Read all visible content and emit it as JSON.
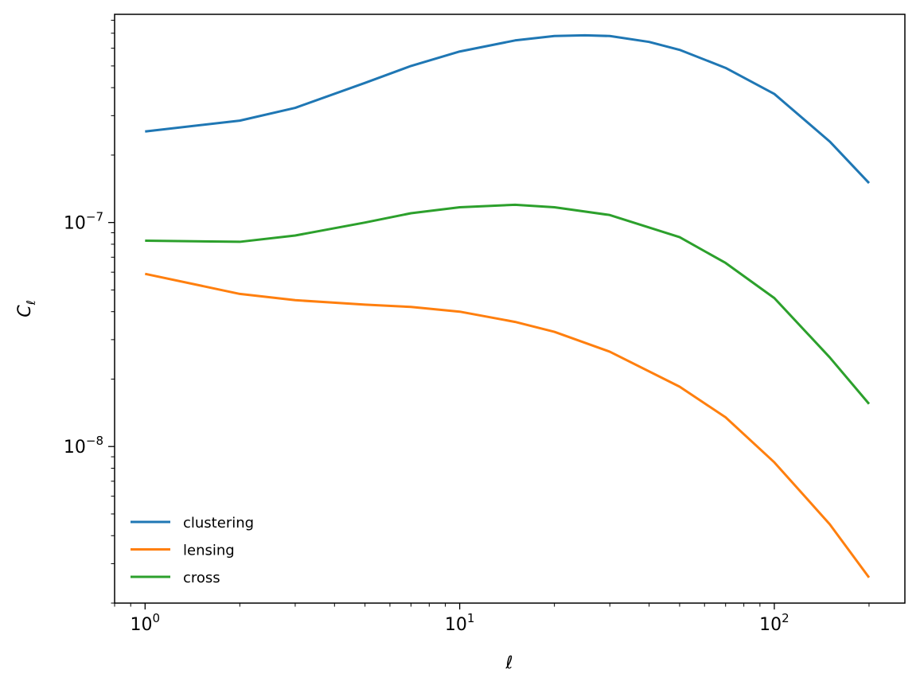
{
  "chart_data": {
    "type": "line",
    "xscale": "log",
    "yscale": "log",
    "xlim": [
      0.8,
      260
    ],
    "ylim": [
      2e-09,
      8.5e-07
    ],
    "xlabel": "ℓ",
    "ylabel": "C",
    "ylabel_sub": "ℓ",
    "grid": false,
    "legend_placement": "lower-left",
    "x_ticks": [
      {
        "base": "10",
        "exp": "0",
        "value": 1
      },
      {
        "base": "10",
        "exp": "1",
        "value": 10
      },
      {
        "base": "10",
        "exp": "2",
        "value": 100
      }
    ],
    "y_ticks": [
      {
        "base": "10",
        "exp": "−8",
        "value": 1e-08
      },
      {
        "base": "10",
        "exp": "−7",
        "value": 1e-07
      }
    ],
    "series": [
      {
        "name": "clustering",
        "color": "#1f77b4",
        "points": [
          [
            1,
            2.55e-07
          ],
          [
            2,
            2.85e-07
          ],
          [
            3,
            3.25e-07
          ],
          [
            5,
            4.2e-07
          ],
          [
            7,
            5e-07
          ],
          [
            10,
            5.8e-07
          ],
          [
            15,
            6.5e-07
          ],
          [
            20,
            6.8e-07
          ],
          [
            25,
            6.85e-07
          ],
          [
            30,
            6.8e-07
          ],
          [
            40,
            6.4e-07
          ],
          [
            50,
            5.9e-07
          ],
          [
            70,
            4.9e-07
          ],
          [
            100,
            3.75e-07
          ],
          [
            150,
            2.3e-07
          ],
          [
            200,
            1.5e-07
          ]
        ]
      },
      {
        "name": "lensing",
        "color": "#ff7f0e",
        "points": [
          [
            1,
            5.9e-08
          ],
          [
            2,
            4.8e-08
          ],
          [
            3,
            4.5e-08
          ],
          [
            5,
            4.3e-08
          ],
          [
            7,
            4.2e-08
          ],
          [
            10,
            4e-08
          ],
          [
            15,
            3.6e-08
          ],
          [
            20,
            3.25e-08
          ],
          [
            30,
            2.65e-08
          ],
          [
            50,
            1.85e-08
          ],
          [
            70,
            1.35e-08
          ],
          [
            100,
            8.5e-09
          ],
          [
            150,
            4.5e-09
          ],
          [
            200,
            2.6e-09
          ]
        ]
      },
      {
        "name": "cross",
        "color": "#2ca02c",
        "points": [
          [
            1,
            8.3e-08
          ],
          [
            2,
            8.2e-08
          ],
          [
            3,
            8.75e-08
          ],
          [
            5,
            1e-07
          ],
          [
            7,
            1.1e-07
          ],
          [
            10,
            1.17e-07
          ],
          [
            15,
            1.2e-07
          ],
          [
            20,
            1.17e-07
          ],
          [
            30,
            1.08e-07
          ],
          [
            50,
            8.6e-08
          ],
          [
            70,
            6.6e-08
          ],
          [
            100,
            4.6e-08
          ],
          [
            150,
            2.5e-08
          ],
          [
            200,
            1.55e-08
          ]
        ]
      }
    ]
  }
}
